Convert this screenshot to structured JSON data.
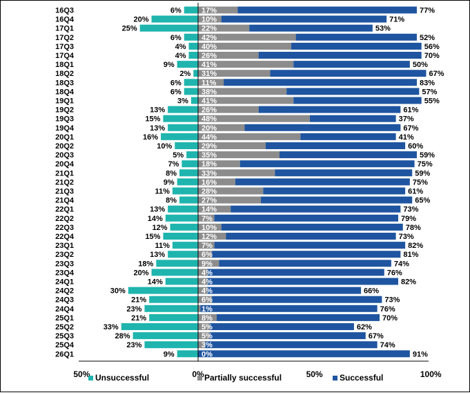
{
  "chart_data": {
    "type": "bar",
    "orientation": "horizontal",
    "stacking": "diverging",
    "title": "",
    "xlabel": "",
    "ylabel": "",
    "xlim": [
      -50,
      100
    ],
    "x_tick_labels": [
      "50%",
      "0%",
      "50%",
      "100%"
    ],
    "x_tick_values": [
      -50,
      0,
      50,
      100
    ],
    "categories": [
      "16Q3",
      "16Q4",
      "17Q1",
      "17Q2",
      "17Q3",
      "17Q4",
      "18Q1",
      "18Q2",
      "18Q3",
      "18Q4",
      "19Q1",
      "19Q2",
      "19Q3",
      "19Q4",
      "20Q1",
      "20Q2",
      "20Q3",
      "20Q4",
      "21Q1",
      "21Q2",
      "21Q3",
      "21Q4",
      "22Q1",
      "22Q2",
      "22Q3",
      "22Q4",
      "23Q1",
      "23Q2",
      "23Q3",
      "23Q4",
      "24Q1",
      "24Q2",
      "24Q3",
      "24Q4",
      "25Q1",
      "25Q2",
      "25Q3",
      "25Q4",
      "26Q1"
    ],
    "series": [
      {
        "name": "Unsuccessful",
        "color": "#1FB5AE",
        "values": [
          6,
          20,
          25,
          6,
          4,
          4,
          9,
          2,
          6,
          6,
          3,
          13,
          15,
          13,
          16,
          10,
          5,
          7,
          8,
          9,
          11,
          8,
          13,
          14,
          12,
          15,
          11,
          13,
          18,
          20,
          14,
          30,
          21,
          23,
          21,
          33,
          28,
          23,
          9
        ]
      },
      {
        "name": "Partially successful",
        "color": "#8C8C8C",
        "values": [
          17,
          10,
          22,
          42,
          40,
          26,
          41,
          31,
          11,
          38,
          41,
          26,
          48,
          20,
          44,
          29,
          35,
          18,
          33,
          16,
          28,
          27,
          14,
          7,
          10,
          12,
          7,
          6,
          9,
          4,
          4,
          4,
          6,
          1,
          8,
          5,
          5,
          3,
          0
        ]
      },
      {
        "name": "Successful",
        "color": "#1F55A0",
        "values": [
          77,
          71,
          53,
          52,
          56,
          70,
          50,
          67,
          83,
          57,
          55,
          61,
          37,
          67,
          41,
          60,
          59,
          75,
          59,
          75,
          61,
          65,
          73,
          79,
          78,
          73,
          82,
          81,
          74,
          76,
          82,
          66,
          73,
          76,
          70,
          62,
          67,
          74,
          91
        ]
      }
    ],
    "legend_position": "bottom",
    "grid": false
  }
}
